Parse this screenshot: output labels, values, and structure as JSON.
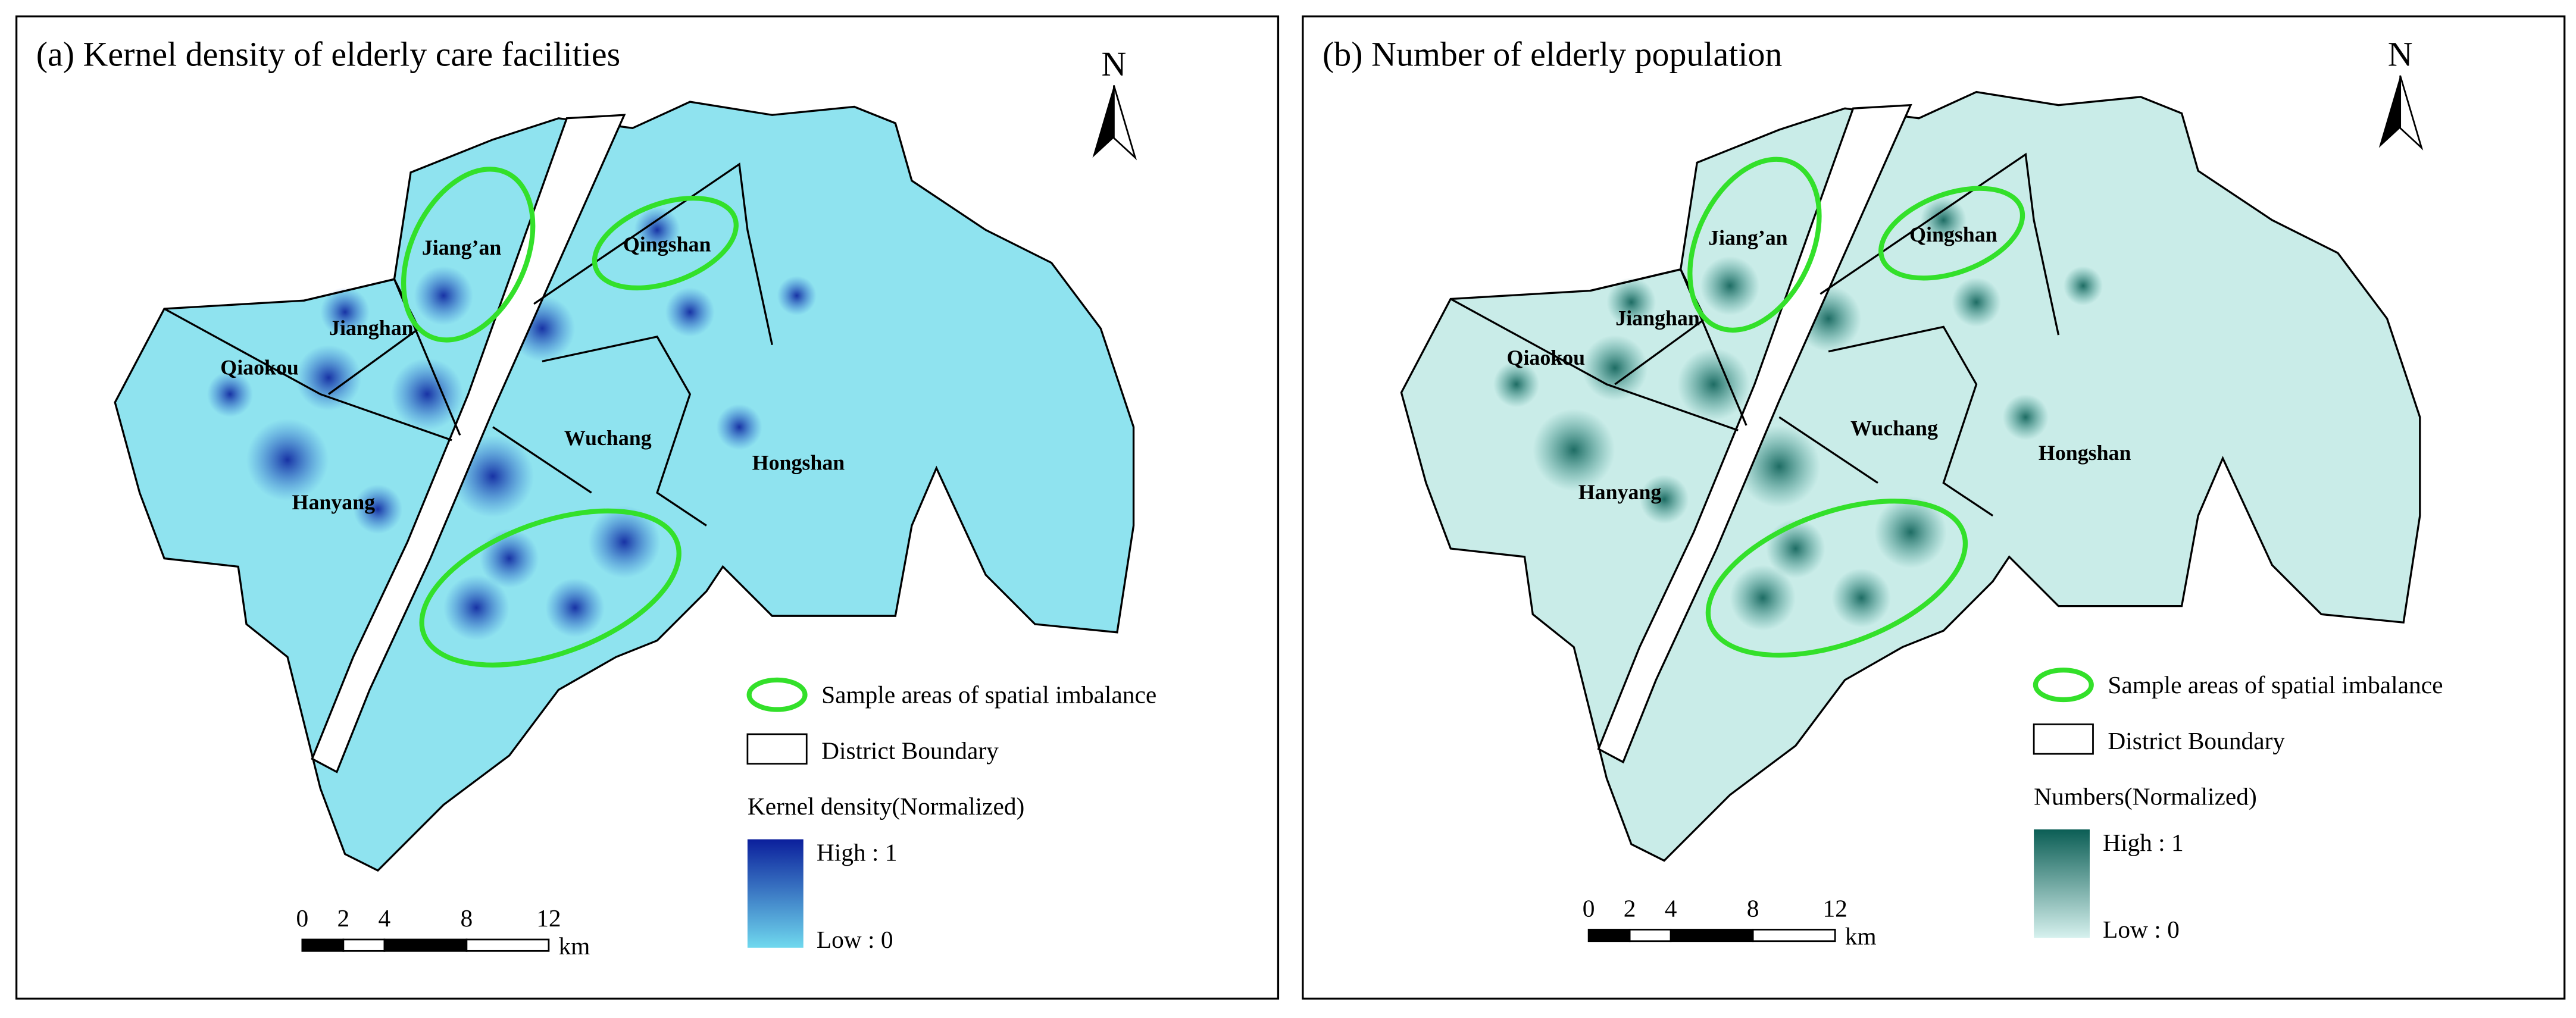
{
  "panels": [
    {
      "title": "(a) Kernel density of elderly care facilities",
      "north": "N",
      "districts": [
        "Jiang’an",
        "Jianghan",
        "Qiaokou",
        "Qingshan",
        "Wuchang",
        "Hongshan",
        "Hanyang"
      ],
      "legend": {
        "sample": "Sample areas of spatial imbalance",
        "boundary": "District Boundary",
        "ramp_title": "Kernel density(Normalized)",
        "high": "High : 1",
        "low": "Low : 0"
      },
      "scale": {
        "ticks": [
          0,
          2,
          4,
          8,
          12
        ],
        "unit": "km"
      },
      "colors": {
        "base": "#8fe3ef",
        "blob": "#1e5fcf",
        "high": "#0b1f9c",
        "low": "#6fd8ee"
      }
    },
    {
      "title": "(b) Number of elderly population",
      "north": "N",
      "districts": [
        "Jiang’an",
        "Jianghan",
        "Qiaokou",
        "Qingshan",
        "Wuchang",
        "Hongshan",
        "Hanyang"
      ],
      "legend": {
        "sample": "Sample areas of spatial imbalance",
        "boundary": "District Boundary",
        "ramp_title": "Numbers(Normalized)",
        "high": "High : 1",
        "low": "Low : 0"
      },
      "scale": {
        "ticks": [
          0,
          2,
          4,
          8,
          12
        ],
        "unit": "km"
      },
      "colors": {
        "base": "#c9ece8",
        "blob": "#2a8a80",
        "high": "#0b5e55",
        "low": "#d6f1ee"
      }
    }
  ]
}
